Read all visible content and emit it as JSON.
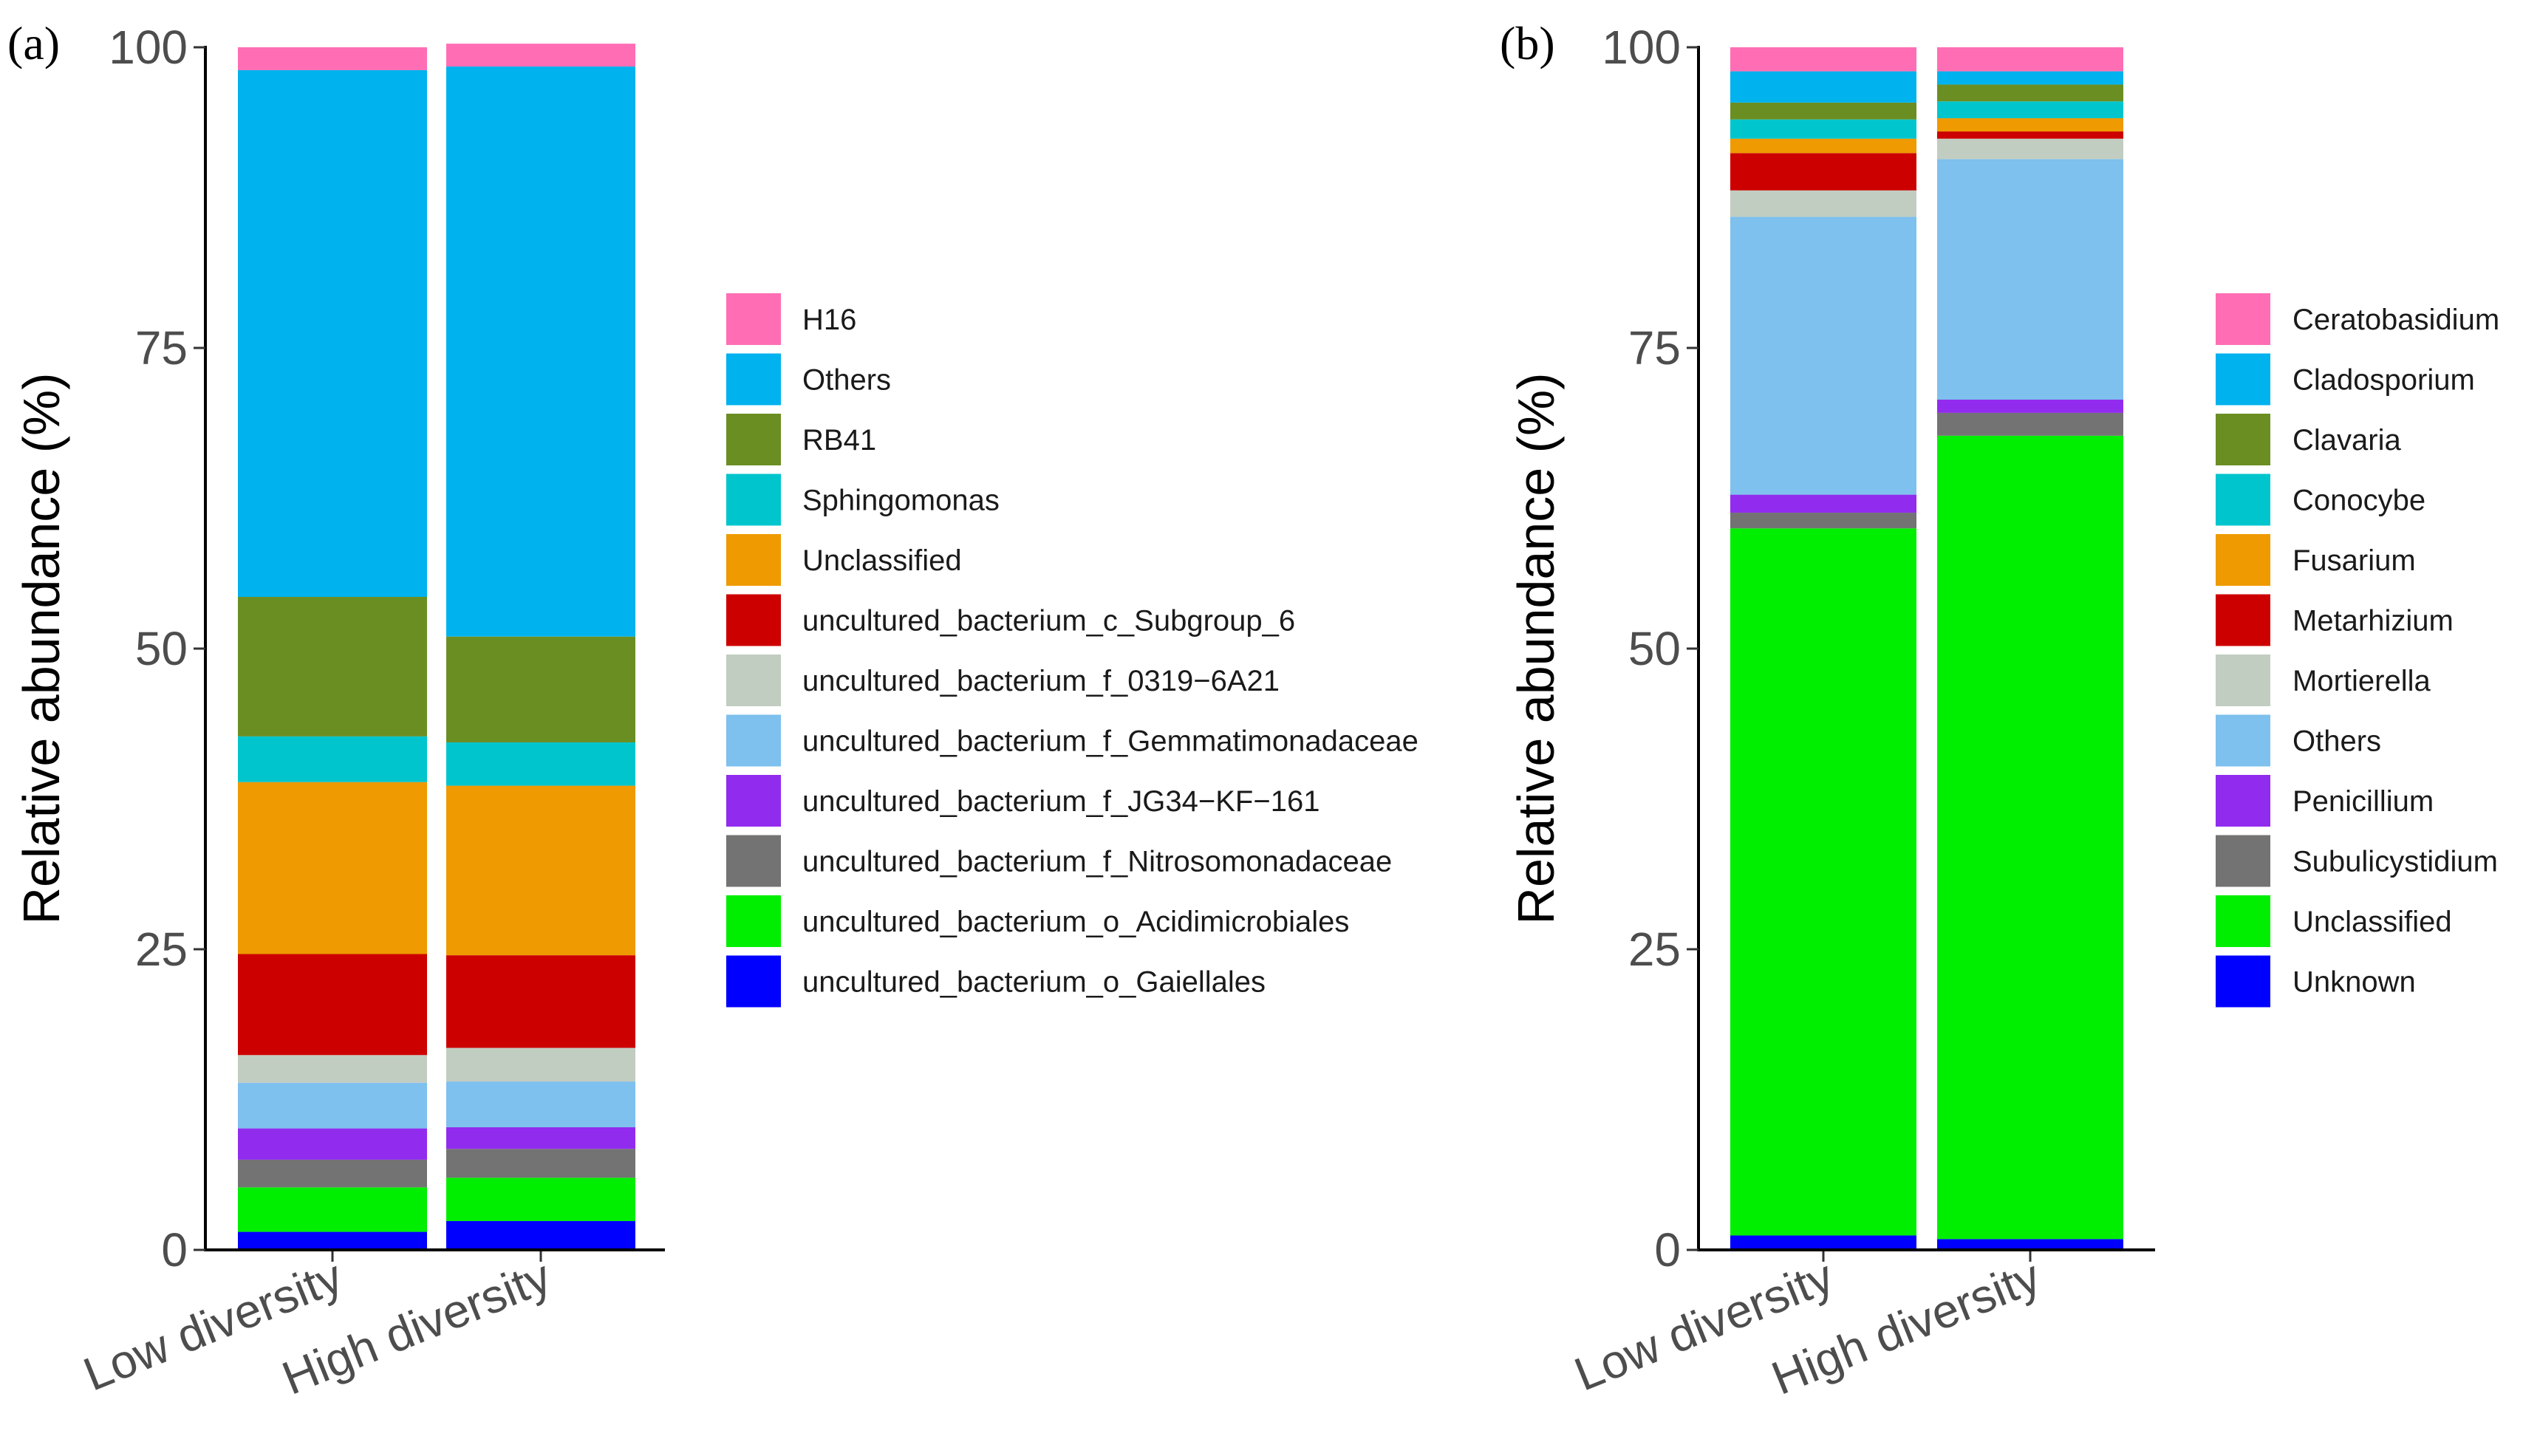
{
  "chart_data": [
    {
      "panel": "(a)",
      "type": "bar",
      "stacked": true,
      "ylabel": "Relative abundance (%)",
      "xlabel": "",
      "ylim": [
        0,
        100
      ],
      "yticks": [
        0,
        25,
        50,
        75,
        100
      ],
      "categories": [
        "Low diversity",
        "High diversity"
      ],
      "legend_position": "right",
      "series": [
        {
          "name": "uncultured_bacterium_o_Gaiellales",
          "color": "#0000FF",
          "values": [
            1.5,
            2.4
          ]
        },
        {
          "name": "uncultured_bacterium_o_Acidimicrobiales",
          "color": "#00EE00",
          "values": [
            3.7,
            3.6
          ]
        },
        {
          "name": "uncultured_bacterium_f_Nitrosomonadaceae",
          "color": "#737373",
          "values": [
            2.3,
            2.4
          ]
        },
        {
          "name": "uncultured_bacterium_f_JG34−KF−161",
          "color": "#912CEE",
          "values": [
            2.6,
            1.8
          ]
        },
        {
          "name": "uncultured_bacterium_f_Gemmatimonadaceae",
          "color": "#7EC0EE",
          "values": [
            3.8,
            3.8
          ]
        },
        {
          "name": "uncultured_bacterium_f_0319−6A21",
          "color": "#C1CDC1",
          "values": [
            2.3,
            2.8
          ]
        },
        {
          "name": "uncultured_bacterium_c_Subgroup_6",
          "color": "#CD0000",
          "values": [
            8.4,
            7.7
          ]
        },
        {
          "name": "Unclassified",
          "color": "#EE9A00",
          "values": [
            14.3,
            14.1
          ]
        },
        {
          "name": "Sphingomonas",
          "color": "#00C5CD",
          "values": [
            3.8,
            3.6
          ]
        },
        {
          "name": "RB41",
          "color": "#6B8E23",
          "values": [
            11.6,
            8.8
          ]
        },
        {
          "name": "Others",
          "color": "#00B2EE",
          "values": [
            43.8,
            47.4
          ]
        },
        {
          "name": "H16",
          "color": "#FF6EB4",
          "values": [
            1.9,
            1.9
          ]
        }
      ],
      "legend_order": [
        "H16",
        "Others",
        "RB41",
        "Sphingomonas",
        "Unclassified",
        "uncultured_bacterium_c_Subgroup_6",
        "uncultured_bacterium_f_0319−6A21",
        "uncultured_bacterium_f_Gemmatimonadaceae",
        "uncultured_bacterium_f_JG34−KF−161",
        "uncultured_bacterium_f_Nitrosomonadaceae",
        "uncultured_bacterium_o_Acidimicrobiales",
        "uncultured_bacterium_o_Gaiellales"
      ]
    },
    {
      "panel": "(b)",
      "type": "bar",
      "stacked": true,
      "ylabel": "Relative abundance (%)",
      "xlabel": "",
      "ylim": [
        0,
        100
      ],
      "yticks": [
        0,
        25,
        50,
        75,
        100
      ],
      "categories": [
        "Low diversity",
        "High diversity"
      ],
      "legend_position": "right",
      "series": [
        {
          "name": "Unknown",
          "color": "#0000FF",
          "values": [
            1.2,
            0.9
          ]
        },
        {
          "name": "Unclassified",
          "color": "#00EE00",
          "values": [
            58.8,
            66.8
          ]
        },
        {
          "name": "Subulicystidium",
          "color": "#737373",
          "values": [
            1.3,
            1.9
          ]
        },
        {
          "name": "Penicillium",
          "color": "#912CEE",
          "values": [
            1.5,
            1.1
          ]
        },
        {
          "name": "Others",
          "color": "#7EC0EE",
          "values": [
            23.1,
            20.0
          ]
        },
        {
          "name": "Mortierella",
          "color": "#C1CDC1",
          "values": [
            2.2,
            1.7
          ]
        },
        {
          "name": "Metarhizium",
          "color": "#CD0000",
          "values": [
            3.1,
            0.6
          ]
        },
        {
          "name": "Fusarium",
          "color": "#EE9A00",
          "values": [
            1.2,
            1.1
          ]
        },
        {
          "name": "Conocybe",
          "color": "#00C5CD",
          "values": [
            1.6,
            1.4
          ]
        },
        {
          "name": "Clavaria",
          "color": "#6B8E23",
          "values": [
            1.4,
            1.4
          ]
        },
        {
          "name": "Cladosporium",
          "color": "#00B2EE",
          "values": [
            2.6,
            1.1
          ]
        },
        {
          "name": "Ceratobasidium",
          "color": "#FF6EB4",
          "values": [
            2.0,
            2.0
          ]
        }
      ],
      "legend_order": [
        "Ceratobasidium",
        "Cladosporium",
        "Clavaria",
        "Conocybe",
        "Fusarium",
        "Metarhizium",
        "Mortierella",
        "Others",
        "Penicillium",
        "Subulicystidium",
        "Unclassified",
        "Unknown"
      ]
    }
  ]
}
